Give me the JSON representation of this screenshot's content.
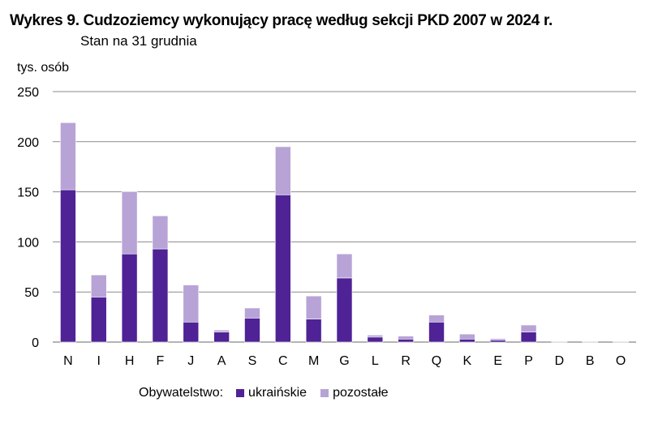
{
  "title": "Wykres 9. Cudzoziemcy wykonujący pracę według sekcji PKD 2007 w 2024 r.",
  "subtitle": "Stan na 31 grudnia",
  "legend_label": "Obywatelstwo:",
  "colors": {
    "ukrainian": "#4f2296",
    "other": "#b7a3d6",
    "grid": "#8a8a8a"
  },
  "chart_data": {
    "type": "bar",
    "stacked": true,
    "title": "Wykres 9. Cudzoziemcy wykonujący pracę według sekcji PKD 2007 w 2024 r.",
    "subtitle": "Stan na 31 grudnia",
    "ylabel": "tys. osób",
    "xlabel": "",
    "ylim": [
      0,
      250
    ],
    "yticks": [
      0,
      50,
      100,
      150,
      200,
      250
    ],
    "grid": true,
    "legend_position": "bottom",
    "categories": [
      "N",
      "I",
      "H",
      "F",
      "J",
      "A",
      "S",
      "C",
      "M",
      "G",
      "L",
      "R",
      "Q",
      "K",
      "E",
      "P",
      "D",
      "B",
      "O"
    ],
    "series": [
      {
        "name": "ukraińskie",
        "values": [
          152,
          45,
          88,
          93,
          20,
          10,
          24,
          147,
          23,
          64,
          5,
          3,
          20,
          3,
          2,
          10,
          0.3,
          0.3,
          0.3
        ]
      },
      {
        "name": "pozostałe",
        "values": [
          67,
          22,
          62,
          33,
          37,
          2,
          10,
          48,
          23,
          24,
          2,
          3,
          7,
          5,
          1.5,
          7,
          0.7,
          0.7,
          0.7
        ]
      }
    ]
  }
}
